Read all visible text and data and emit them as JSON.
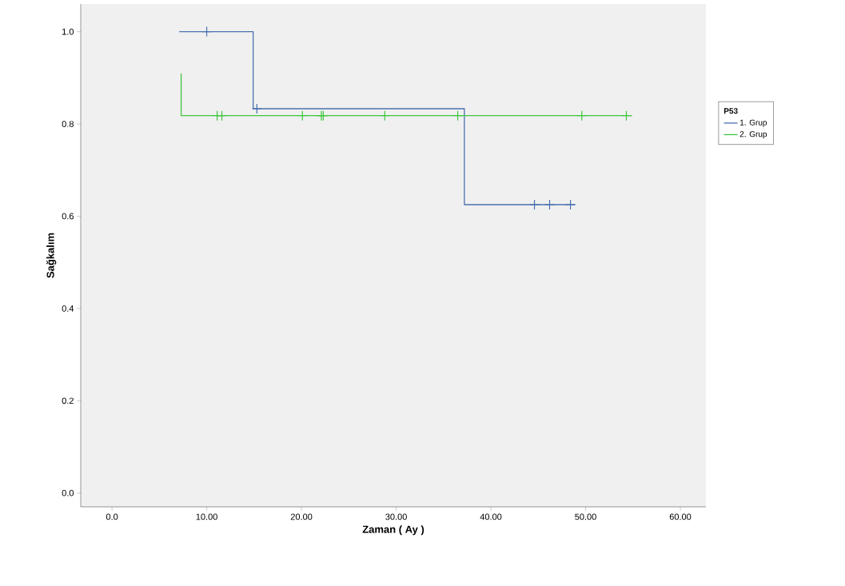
{
  "chart_data": {
    "type": "step",
    "xlabel": "Zaman ( Ay )",
    "ylabel": "Sağkalım",
    "legend_title": "P53",
    "legend": "right",
    "grid": false,
    "xlim": [
      -3.3,
      62.7
    ],
    "ylim": [
      -0.03,
      1.06
    ],
    "xticks": [
      {
        "value": 0,
        "label": "0.0"
      },
      {
        "value": 10,
        "label": "10.00"
      },
      {
        "value": 20,
        "label": "20.00"
      },
      {
        "value": 30,
        "label": "30.00"
      },
      {
        "value": 40,
        "label": "40.00"
      },
      {
        "value": 50,
        "label": "50.00"
      },
      {
        "value": 60,
        "label": "60.00"
      }
    ],
    "yticks": [
      {
        "value": 0,
        "label": "0.0"
      },
      {
        "value": 0.2,
        "label": "0.2"
      },
      {
        "value": 0.4,
        "label": "0.4"
      },
      {
        "value": 0.6,
        "label": "0.6"
      },
      {
        "value": 0.8,
        "label": "0.8"
      },
      {
        "value": 1.0,
        "label": "1.0"
      }
    ],
    "series": [
      {
        "name": "1. Grup",
        "color": "#4a72b0",
        "x": [
          7.1,
          14.9,
          37.2,
          48.9
        ],
        "values": [
          1.0,
          0.833,
          0.625,
          0.625
        ]
      },
      {
        "name": "2. Grup",
        "color": "#3ec63e",
        "x": [
          7.3,
          7.3,
          54.9
        ],
        "values": [
          0.909,
          0.818,
          0.818
        ]
      },
      {
        "type": "scatter",
        "marker": "cross",
        "color": "#4a72b0",
        "x": [
          10.0,
          15.3,
          44.6,
          46.2,
          48.4
        ],
        "values": [
          1.0,
          0.833,
          0.625,
          0.625,
          0.625
        ]
      },
      {
        "type": "scatter",
        "marker": "cross",
        "color": "#3ec63e",
        "x": [
          11.1,
          11.6,
          20.1,
          22.1,
          22.3,
          28.8,
          36.5,
          49.6,
          54.3
        ],
        "values": [
          0.818,
          0.818,
          0.818,
          0.818,
          0.818,
          0.818,
          0.818,
          0.818,
          0.818
        ]
      }
    ]
  }
}
